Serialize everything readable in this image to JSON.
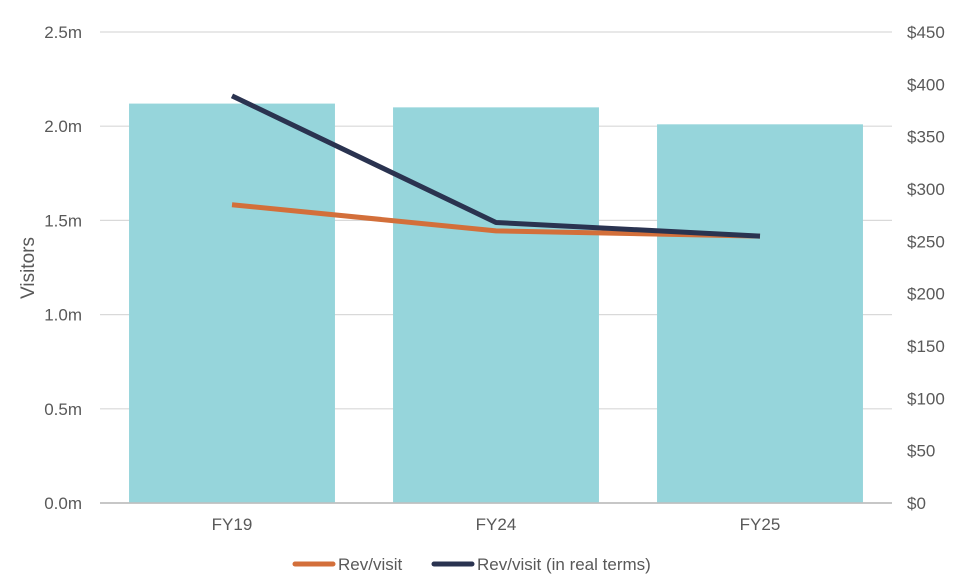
{
  "chart_data": {
    "type": "bar",
    "categories": [
      "FY19",
      "FY24",
      "FY25"
    ],
    "ylabel": "Visitors",
    "y_ticks": [
      "0.0m",
      "0.5m",
      "1.0m",
      "1.5m",
      "2.0m",
      "2.5m"
    ],
    "y_tick_values": [
      0,
      0.5,
      1.0,
      1.5,
      2.0,
      2.5
    ],
    "ylim": [
      0,
      2.5
    ],
    "y2_ticks": [
      "$0",
      "$50",
      "$100",
      "$150",
      "$200",
      "$250",
      "$300",
      "$350",
      "$400",
      "$450"
    ],
    "y2_tick_values": [
      0,
      50,
      100,
      150,
      200,
      250,
      300,
      350,
      400,
      450
    ],
    "y2lim": [
      0,
      450
    ],
    "grid": true,
    "legend_position": "bottom",
    "bars": {
      "values": [
        2.12,
        2.1,
        2.01
      ],
      "color": "#96d5db",
      "axis": "left"
    },
    "series": [
      {
        "name": "Rev/visit",
        "values": [
          285,
          260,
          255
        ],
        "color": "#d36f3a",
        "axis": "right"
      },
      {
        "name": "Rev/visit (in real terms)",
        "values": [
          389,
          268,
          255
        ],
        "color": "#2a3350",
        "axis": "right"
      }
    ]
  }
}
